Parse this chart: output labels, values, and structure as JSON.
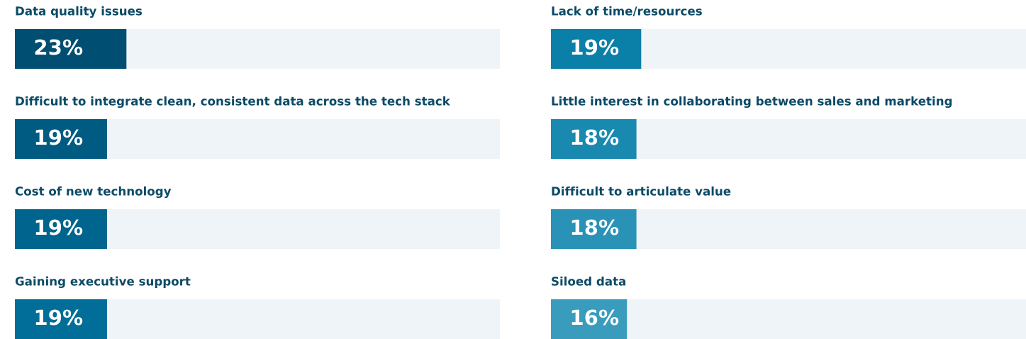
{
  "chart_data": [
    {
      "type": "bar",
      "orientation": "horizontal",
      "categories": [
        "Data quality issues",
        "Difficult to integrate clean, consistent data across the tech stack",
        "Cost of new technology",
        "Gaining executive support"
      ],
      "values": [
        23,
        19,
        19,
        19
      ],
      "colors": [
        "#004f72",
        "#005b82",
        "#00658e",
        "#006e98"
      ],
      "xlim": [
        0,
        100
      ],
      "data_labels": true,
      "value_labels": [
        "23%",
        "19%",
        "19%",
        "19%"
      ],
      "tick_labels": false
    },
    {
      "type": "bar",
      "orientation": "horizontal",
      "categories": [
        "Lack of time/resources",
        "Little interest in collaborating between sales and marketing",
        "Difficult to articulate value",
        "Siloed data"
      ],
      "values": [
        19,
        18,
        18,
        16
      ],
      "colors": [
        "#0a7fa8",
        "#1a89b0",
        "#2a92b6",
        "#3a9cbd"
      ],
      "xlim": [
        0,
        100
      ],
      "data_labels": true,
      "value_labels": [
        "19%",
        "18%",
        "18%",
        "16%"
      ],
      "tick_labels": false
    }
  ]
}
